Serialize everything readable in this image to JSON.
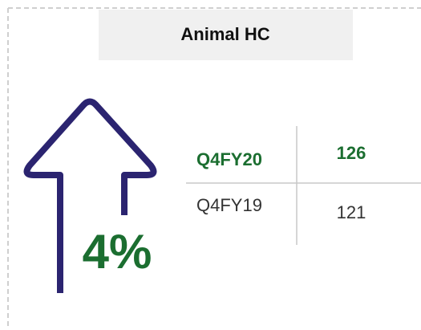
{
  "card": {
    "title": "Animal HC",
    "change": "4%",
    "rows": [
      [
        "Q4FY20",
        "126"
      ],
      [
        "Q4FY19",
        "121"
      ]
    ]
  }
}
